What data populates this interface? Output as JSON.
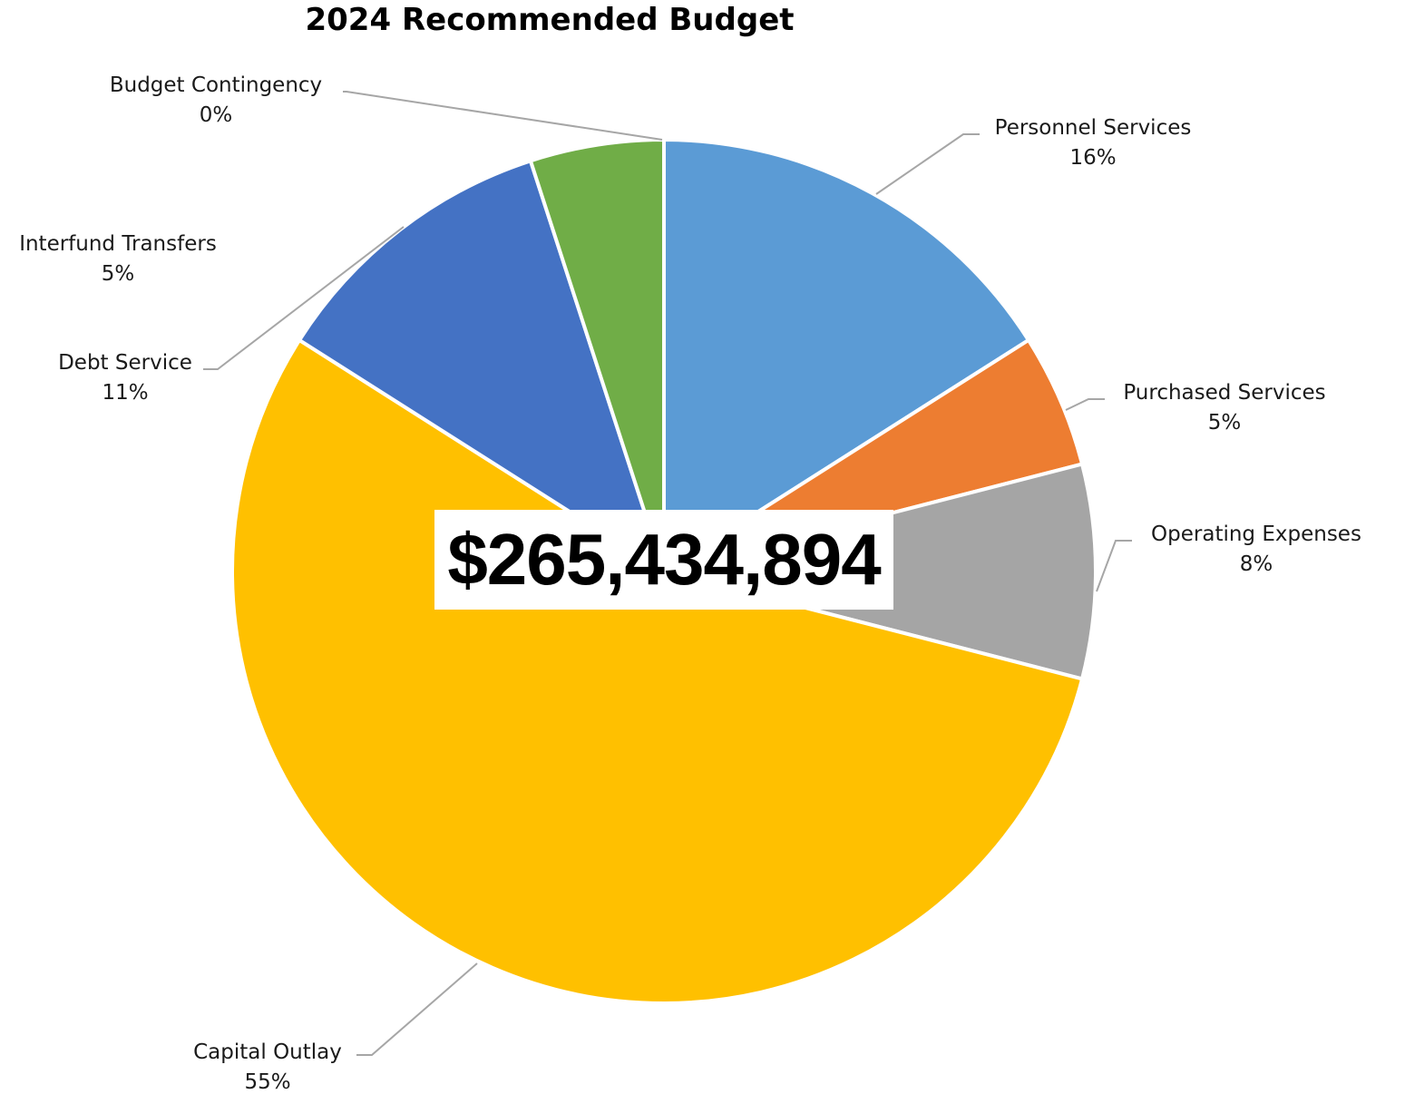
{
  "chart_data": {
    "type": "pie",
    "title": "2024 Recommended Budget",
    "center_total": "$265,434,894",
    "start_angle_deg": 0,
    "direction": "clockwise",
    "slices": [
      {
        "name": "Personnel Services",
        "value": 16,
        "label": "16%",
        "color": "#5B9BD5"
      },
      {
        "name": "Purchased Services",
        "value": 5,
        "label": "5%",
        "color": "#ED7D31"
      },
      {
        "name": "Operating Expenses",
        "value": 8,
        "label": "8%",
        "color": "#A5A5A5"
      },
      {
        "name": "Capital Outlay",
        "value": 55,
        "label": "55%",
        "color": "#FFC000"
      },
      {
        "name": "Debt Service",
        "value": 11,
        "label": "11%",
        "color": "#4472C4"
      },
      {
        "name": "Interfund Transfers",
        "value": 5,
        "label": "5%",
        "color": "#70AD47"
      },
      {
        "name": "Budget Contingency",
        "value": 0,
        "label": "0%",
        "color": "#264478"
      }
    ]
  }
}
